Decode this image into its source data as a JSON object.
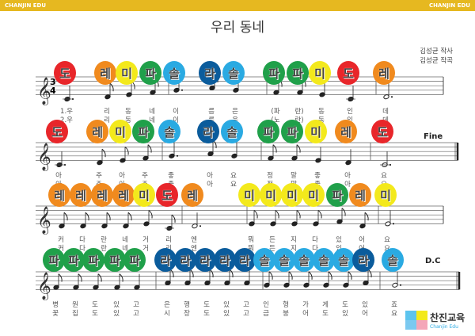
{
  "header": {
    "left": "CHANJIN EDU",
    "right": "CHANJIN EDU"
  },
  "title": "우리 동네",
  "lyricist": "김성균 작사",
  "composer": "김성균 작곡",
  "time_signature": "3/4",
  "marks": {
    "fine": "Fine",
    "dc": "D.C"
  },
  "logo": {
    "korean": "찬진교육",
    "english": "Chanjin Edu"
  },
  "colors": {
    "도": "#e8262a",
    "레": "#f08a1e",
    "미": "#f3e91c",
    "파": "#20a04a",
    "솔": "#2aaae2",
    "라": "#0b5c9c"
  },
  "rows": [
    {
      "notes": [
        {
          "n": "도",
          "p": "C",
          "d": "4.",
          "l1": "1.우",
          "l2": "2.우"
        },
        {
          "n": "레",
          "p": "D",
          "d": "8",
          "l1": "리",
          "l2": "리"
        },
        {
          "n": "미",
          "p": "E",
          "d": "8",
          "l1": "동",
          "l2": "동"
        },
        {
          "n": "파",
          "p": "F",
          "d": "8",
          "l1": "네",
          "l2": "네"
        },
        {
          "n": "솔",
          "p": "G",
          "d": "4.",
          "l1": "이",
          "l2": "이"
        },
        {
          "n": "라",
          "p": "A",
          "d": "8",
          "l1": "름",
          "l2": "름"
        },
        {
          "n": "솔",
          "p": "G",
          "d": "4",
          "l1": "은",
          "l2": "은"
        },
        {
          "n": "파",
          "p": "F",
          "d": "8",
          "l1": "(파",
          "l2": "(노"
        },
        {
          "n": "파",
          "p": "F",
          "d": "8",
          "l1": "란)",
          "l2": "란)"
        },
        {
          "n": "미",
          "p": "E",
          "d": "4",
          "l1": "동",
          "l2": "동"
        },
        {
          "n": "도",
          "p": "C",
          "d": "4",
          "l1": "인",
          "l2": "인"
        },
        {
          "n": "레",
          "p": "D",
          "d": "2.",
          "l1": "데",
          "l2": "데"
        }
      ]
    },
    {
      "notes": [
        {
          "n": "도",
          "p": "C",
          "d": "4.",
          "l1": "아",
          "l2": "아"
        },
        {
          "n": "레",
          "p": "D",
          "d": "8",
          "l1": "주",
          "l2": "주"
        },
        {
          "n": "미",
          "p": "E",
          "d": "8",
          "l1": "아",
          "l2": "아"
        },
        {
          "n": "파",
          "p": "F",
          "d": "8",
          "l1": "주",
          "l2": "주"
        },
        {
          "n": "솔",
          "p": "G",
          "d": "4.",
          "l1": "좋",
          "l2": "좋"
        },
        {
          "n": "라",
          "p": "A",
          "d": "8",
          "l1": "아",
          "l2": "아"
        },
        {
          "n": "솔",
          "p": "G",
          "d": "4",
          "l1": "요",
          "l2": "요"
        },
        {
          "n": "파",
          "p": "F",
          "d": "8",
          "l1": "정",
          "l2": "정"
        },
        {
          "n": "파",
          "p": "F",
          "d": "8",
          "l1": "말",
          "l2": "말"
        },
        {
          "n": "미",
          "p": "E",
          "d": "4",
          "l1": "좋",
          "l2": "좋"
        },
        {
          "n": "레",
          "p": "D",
          "d": "4",
          "l1": "아",
          "l2": "아"
        },
        {
          "n": "도",
          "p": "C",
          "d": "2.",
          "l1": "요",
          "l2": "요"
        }
      ]
    },
    {
      "notes": [
        {
          "n": "레",
          "p": "D",
          "d": "8",
          "l1": "커",
          "l2": "커"
        },
        {
          "n": "레",
          "p": "D",
          "d": "8",
          "l1": "다",
          "l2": "다"
        },
        {
          "n": "레",
          "p": "D",
          "d": "8",
          "l1": "란",
          "l2": "란"
        },
        {
          "n": "레",
          "p": "D",
          "d": "8",
          "l1": "네",
          "l2": "네"
        },
        {
          "n": "미",
          "p": "E",
          "d": "8",
          "l1": "거",
          "l2": "거"
        },
        {
          "n": "도",
          "p": "C",
          "d": "8",
          "l1": "리",
          "l2": "리"
        },
        {
          "n": "레",
          "p": "D",
          "d": "2.",
          "l1": "엔",
          "l2": "엔"
        },
        {
          "n": "미",
          "p": "E",
          "d": "8",
          "l1": "뭐",
          "l2": "뭐"
        },
        {
          "n": "미",
          "p": "E",
          "d": "8",
          "l1": "든",
          "l2": "든"
        },
        {
          "n": "미",
          "p": "E",
          "d": "8",
          "l1": "지",
          "l2": "지"
        },
        {
          "n": "미",
          "p": "E",
          "d": "8",
          "l1": "다",
          "l2": "다"
        },
        {
          "n": "파",
          "p": "F",
          "d": "8",
          "l1": "있",
          "l2": "있"
        },
        {
          "n": "레",
          "p": "D",
          "d": "8",
          "l1": "어",
          "l2": "어"
        },
        {
          "n": "미",
          "p": "E",
          "d": "2.",
          "l1": "요",
          "l2": "요"
        }
      ]
    },
    {
      "notes": [
        {
          "n": "파",
          "p": "F",
          "d": "8",
          "l1": "병",
          "l2": "꽃"
        },
        {
          "n": "파",
          "p": "F",
          "d": "8",
          "l1": "원",
          "l2": "집"
        },
        {
          "n": "파",
          "p": "F",
          "d": "8",
          "l1": "도",
          "l2": "도"
        },
        {
          "n": "파",
          "p": "F",
          "d": "8",
          "l1": "있",
          "l2": "있"
        },
        {
          "n": "파",
          "p": "F",
          "d": "4",
          "l1": "고",
          "l2": "고"
        },
        {
          "n": "라",
          "p": "A",
          "d": "8",
          "l1": "은",
          "l2": "시"
        },
        {
          "n": "라",
          "p": "A",
          "d": "8",
          "l1": "행",
          "l2": "장"
        },
        {
          "n": "라",
          "p": "A",
          "d": "8",
          "l1": "도",
          "l2": "도"
        },
        {
          "n": "라",
          "p": "A",
          "d": "8",
          "l1": "있",
          "l2": "있"
        },
        {
          "n": "라",
          "p": "A",
          "d": "4",
          "l1": "고",
          "l2": "고"
        },
        {
          "n": "솔",
          "p": "G",
          "d": "8",
          "l1": "인",
          "l2": "금"
        },
        {
          "n": "솔",
          "p": "G",
          "d": "8",
          "l1": "형",
          "l2": "붕"
        },
        {
          "n": "솔",
          "p": "G",
          "d": "8",
          "l1": "가",
          "l2": "어"
        },
        {
          "n": "솔",
          "p": "G",
          "d": "8",
          "l1": "게",
          "l2": "도"
        },
        {
          "n": "솔",
          "p": "G",
          "d": "8",
          "l1": "도",
          "l2": "있"
        },
        {
          "n": "라",
          "p": "A",
          "d": "8",
          "l1": "있",
          "l2": "어"
        },
        {
          "n": "솔",
          "p": "G",
          "d": "2.",
          "l1": "죠",
          "l2": "요"
        }
      ]
    }
  ]
}
